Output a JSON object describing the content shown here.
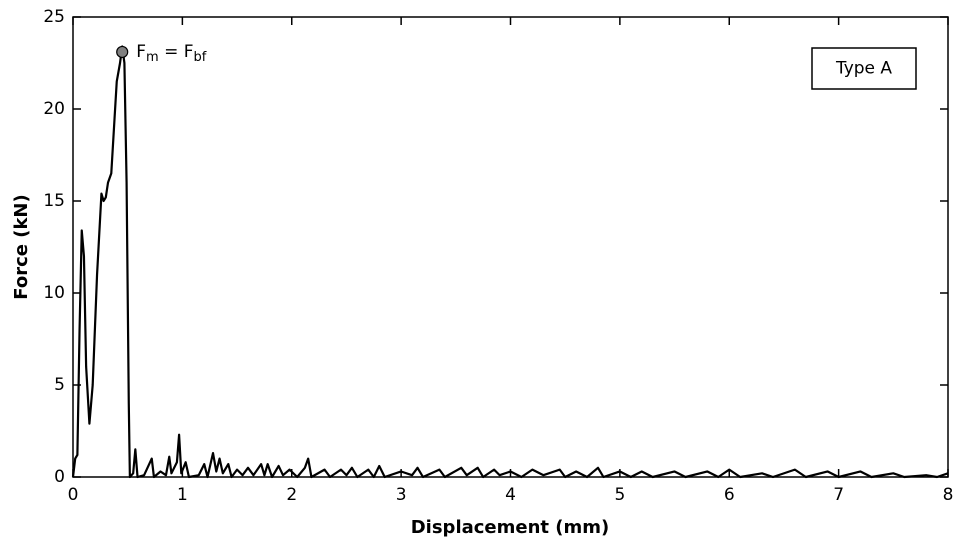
{
  "chart_data": {
    "type": "line",
    "xlabel": "Displacement (mm)",
    "ylabel": "Force (kN)",
    "xlim": [
      0,
      8
    ],
    "ylim": [
      0,
      25
    ],
    "xticks": [
      0,
      1,
      2,
      3,
      4,
      5,
      6,
      7,
      8
    ],
    "yticks": [
      0,
      5,
      10,
      15,
      20,
      25
    ],
    "legend": "upper right",
    "series": [
      {
        "name": "Type A",
        "color": "#000000",
        "x": [
          0,
          0.02,
          0.04,
          0.06,
          0.08,
          0.1,
          0.12,
          0.15,
          0.18,
          0.22,
          0.26,
          0.28,
          0.3,
          0.32,
          0.35,
          0.38,
          0.4,
          0.43,
          0.45,
          0.47,
          0.49,
          0.51,
          0.52,
          0.55,
          0.57,
          0.59,
          0.65,
          0.72,
          0.74,
          0.8,
          0.85,
          0.88,
          0.9,
          0.95,
          0.97,
          0.99,
          1.03,
          1.06,
          1.15,
          1.2,
          1.23,
          1.28,
          1.31,
          1.34,
          1.37,
          1.42,
          1.45,
          1.5,
          1.55,
          1.6,
          1.65,
          1.72,
          1.75,
          1.78,
          1.82,
          1.88,
          1.92,
          1.98,
          2.05,
          2.12,
          2.15,
          2.18,
          2.3,
          2.35,
          2.45,
          2.5,
          2.55,
          2.6,
          2.7,
          2.75,
          2.8,
          2.85,
          3.0,
          3.1,
          3.15,
          3.2,
          3.35,
          3.4,
          3.55,
          3.6,
          3.7,
          3.75,
          3.85,
          3.9,
          4.0,
          4.1,
          4.2,
          4.3,
          4.45,
          4.5,
          4.6,
          4.7,
          4.8,
          4.85,
          5.0,
          5.1,
          5.2,
          5.3,
          5.5,
          5.6,
          5.8,
          5.9,
          6.0,
          6.1,
          6.3,
          6.4,
          6.6,
          6.7,
          6.9,
          7.0,
          7.2,
          7.3,
          7.5,
          7.6,
          7.8,
          7.9,
          8.0
        ],
        "values": [
          0,
          1,
          1.2,
          8,
          13.4,
          12,
          6,
          2.9,
          5,
          11,
          15.4,
          15,
          15.2,
          16,
          16.5,
          19.5,
          21.5,
          22.5,
          23.4,
          22.5,
          16,
          4,
          0,
          0.2,
          1.5,
          0,
          0.1,
          1.0,
          0,
          0.3,
          0.1,
          1.1,
          0.2,
          0.8,
          2.3,
          0.2,
          0.8,
          0,
          0.1,
          0.7,
          0,
          1.3,
          0.3,
          1.0,
          0.2,
          0.7,
          0,
          0.4,
          0.1,
          0.5,
          0.1,
          0.7,
          0.1,
          0.7,
          0,
          0.6,
          0.1,
          0.4,
          0,
          0.5,
          1.0,
          0,
          0.4,
          0,
          0.4,
          0.1,
          0.5,
          0,
          0.4,
          0,
          0.6,
          0,
          0.3,
          0.1,
          0.5,
          0,
          0.4,
          0,
          0.5,
          0.1,
          0.5,
          0,
          0.4,
          0.1,
          0.3,
          0,
          0.4,
          0.1,
          0.4,
          0,
          0.3,
          0,
          0.5,
          0,
          0.3,
          0,
          0.3,
          0,
          0.3,
          0,
          0.3,
          0,
          0.4,
          0,
          0.2,
          0,
          0.4,
          0,
          0.3,
          0,
          0.3,
          0,
          0.2,
          0,
          0.1,
          0,
          0.2
        ]
      }
    ],
    "annotation": {
      "x": 0.45,
      "y": 23.1,
      "color": "#808080",
      "text": [
        "F",
        "m",
        " = ",
        "F",
        "bf"
      ]
    }
  }
}
